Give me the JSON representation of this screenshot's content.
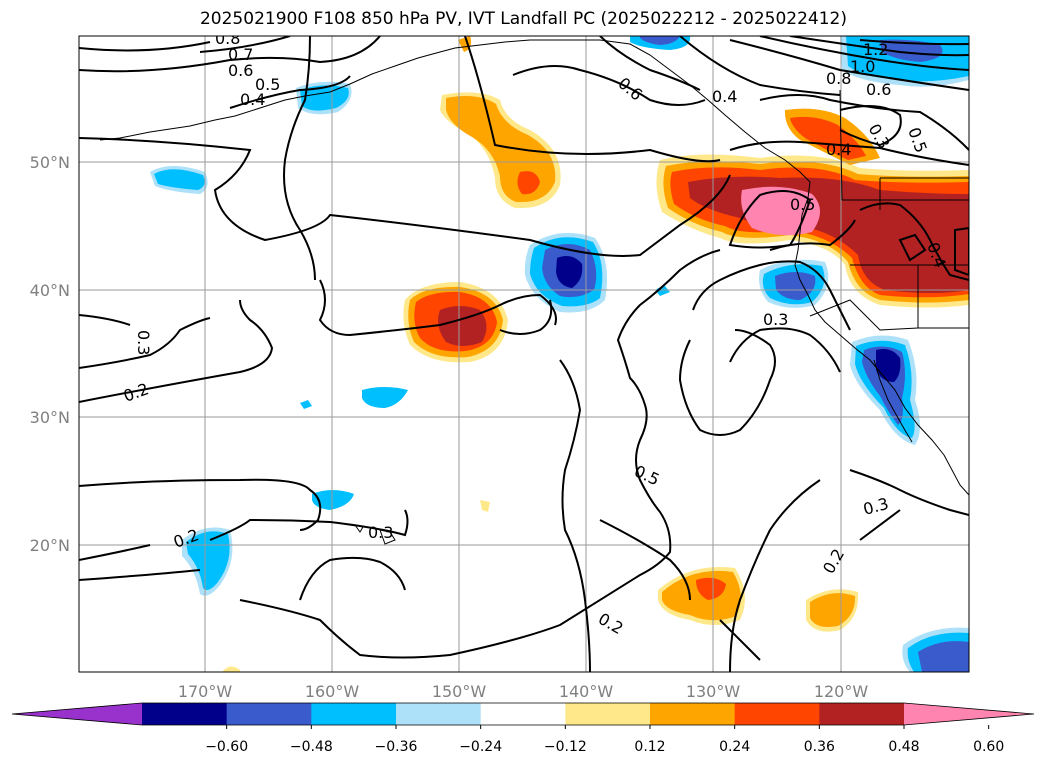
{
  "title": "2025021900 F108 850 hPa PV, IVT Landfall PC (2025022212 - 2025022412)",
  "lat_ticks": [
    "50°N",
    "40°N",
    "30°N",
    "20°N"
  ],
  "lon_ticks": [
    "170°W",
    "160°W",
    "150°W",
    "140°W",
    "130°W",
    "120°W"
  ],
  "contour_labels": [
    "0.8",
    "0.7",
    "0.6",
    "0.5",
    "0.4",
    "1.2",
    "1.0",
    "0.8",
    "0.6",
    "0.5",
    "0.3",
    "0.4",
    "0.6",
    "0.4",
    "0.5",
    "0.4",
    "0.3",
    "0.3",
    "0.2",
    "0.5",
    "0.2",
    "0.3",
    "0.3",
    "0.2",
    "0.2"
  ],
  "colorbar": {
    "ticks": [
      "−0.60",
      "−0.48",
      "−0.36",
      "−0.24",
      "−0.12",
      "0.12",
      "0.24",
      "0.36",
      "0.48",
      "0.60"
    ],
    "colors": [
      "#9932CC",
      "#00008B",
      "#3A5BCC",
      "#00BFFF",
      "#ADE1FA",
      "#FFFFFF",
      "#FFE88A",
      "#FFA500",
      "#FF4500",
      "#B22222",
      "#FF85B0"
    ]
  },
  "colors": {
    "grid": "#9a9a9a",
    "contour": "#000000",
    "coast": "#000000"
  }
}
